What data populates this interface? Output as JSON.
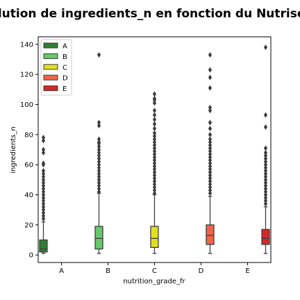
{
  "chart_data": {
    "type": "box",
    "title": "Evolution de ingredients_n en fonction du Nutriscore",
    "xlabel": "nutrition_grade_fr",
    "ylabel": "ingredients_n",
    "categories": [
      "A",
      "B",
      "C",
      "D",
      "E"
    ],
    "ylim": [
      -5,
      145
    ],
    "yticks": [
      0,
      20,
      40,
      60,
      80,
      100,
      120,
      140
    ],
    "grid": false,
    "legend": {
      "position": "top-left",
      "entries": [
        "A",
        "B",
        "C",
        "D",
        "E"
      ]
    },
    "colors": {
      "A": "#2e7d32",
      "B": "#66c96b",
      "C": "#e0e020",
      "D": "#ef6548",
      "E": "#d62728"
    },
    "boxes": [
      {
        "category": "A",
        "whisker_low": 1,
        "q1": 2,
        "median": 4,
        "q3": 10,
        "whisker_high": 22,
        "outliers": [
          24,
          26,
          28,
          30,
          32,
          34,
          36,
          38,
          40,
          42,
          44,
          46,
          48,
          50,
          52,
          54,
          56,
          60,
          61,
          68,
          70,
          76,
          78
        ]
      },
      {
        "category": "B",
        "whisker_low": 1,
        "q1": 4,
        "median": 11,
        "q3": 19,
        "whisker_high": 41,
        "outliers": [
          42,
          44,
          46,
          48,
          50,
          52,
          54,
          56,
          58,
          60,
          62,
          64,
          66,
          68,
          70,
          72,
          74,
          75,
          77,
          86,
          88,
          133
        ]
      },
      {
        "category": "C",
        "whisker_low": 1,
        "q1": 5,
        "median": 11,
        "q3": 19,
        "whisker_high": 40,
        "outliers": [
          41,
          43,
          45,
          47,
          49,
          51,
          53,
          55,
          57,
          59,
          61,
          63,
          65,
          67,
          69,
          71,
          73,
          75,
          77,
          79,
          81,
          84,
          87,
          90,
          93,
          96,
          101,
          103,
          104,
          107
        ]
      },
      {
        "category": "D",
        "whisker_low": 1,
        "q1": 7,
        "median": 13,
        "q3": 20,
        "whisker_high": 39,
        "outliers": [
          41,
          43,
          45,
          47,
          49,
          51,
          53,
          55,
          57,
          59,
          61,
          63,
          65,
          67,
          69,
          71,
          73,
          75,
          77,
          80,
          84,
          88,
          96,
          98,
          111,
          118,
          123,
          133
        ]
      },
      {
        "category": "E",
        "whisker_low": 1,
        "q1": 7,
        "median": 11,
        "q3": 17,
        "whisker_high": 32,
        "outliers": [
          34,
          36,
          38,
          40,
          42,
          44,
          46,
          48,
          50,
          52,
          54,
          56,
          58,
          60,
          62,
          64,
          66,
          68,
          71,
          85,
          93,
          138
        ]
      }
    ]
  }
}
